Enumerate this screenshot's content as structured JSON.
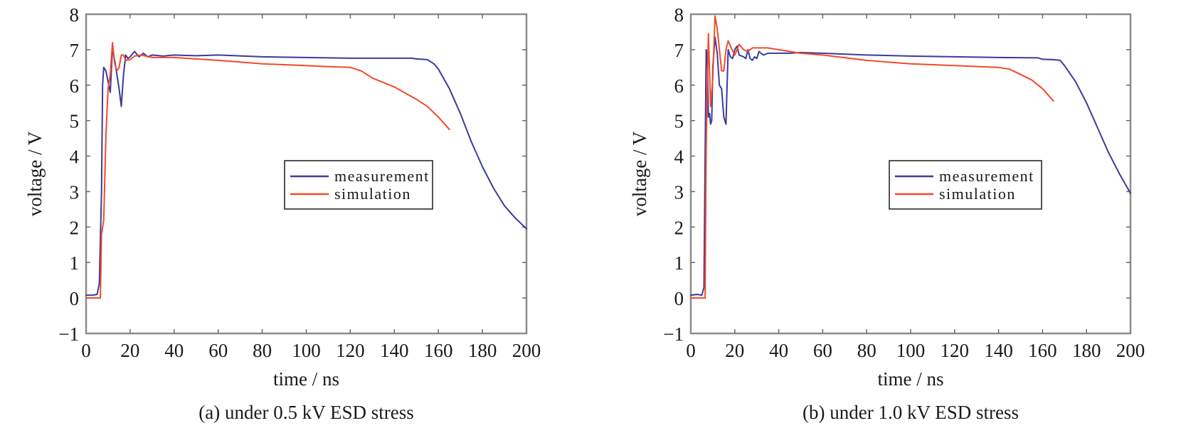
{
  "figure": {
    "panels": [
      "a",
      "b"
    ]
  },
  "chart_data": [
    {
      "id": "a",
      "type": "line",
      "caption": "(a) under 0.5 kV ESD stress",
      "title": "",
      "xlabel": "time / ns",
      "ylabel": "voltage / V",
      "xlim": [
        0,
        200
      ],
      "ylim": [
        -1,
        8
      ],
      "xticks": [
        0,
        20,
        40,
        60,
        80,
        100,
        120,
        140,
        160,
        180,
        200
      ],
      "yticks": [
        -1,
        0,
        1,
        2,
        3,
        4,
        5,
        6,
        7,
        8
      ],
      "xtick_labels": [
        "0",
        "20",
        "40",
        "60",
        "80",
        "100",
        "120",
        "140",
        "160",
        "180",
        "200"
      ],
      "ytick_labels": [
        "−1",
        "0",
        "1",
        "2",
        "3",
        "4",
        "5",
        "6",
        "7",
        "8"
      ],
      "grid": false,
      "legend": {
        "position": "center-right",
        "entries": [
          "measurement",
          "simulation"
        ]
      },
      "series": [
        {
          "name": "measurement",
          "color": "#3b3b9c",
          "x": [
            0,
            3,
            5,
            6,
            7,
            7.5,
            8,
            9,
            10,
            11,
            12,
            13,
            14,
            15,
            16,
            17,
            18,
            19,
            20,
            22,
            24,
            26,
            28,
            30,
            35,
            40,
            50,
            60,
            80,
            100,
            120,
            140,
            148,
            150,
            155,
            158,
            160,
            165,
            170,
            175,
            180,
            185,
            190,
            195,
            200
          ],
          "y": [
            0.08,
            0.08,
            0.1,
            0.4,
            3.0,
            6.0,
            6.5,
            6.4,
            6.1,
            5.8,
            7.05,
            6.7,
            6.3,
            5.9,
            5.4,
            6.3,
            6.85,
            6.75,
            6.8,
            6.95,
            6.8,
            6.9,
            6.8,
            6.85,
            6.82,
            6.85,
            6.83,
            6.85,
            6.8,
            6.78,
            6.76,
            6.76,
            6.76,
            6.74,
            6.72,
            6.6,
            6.45,
            5.9,
            5.2,
            4.4,
            3.7,
            3.1,
            2.6,
            2.25,
            1.95
          ]
        },
        {
          "name": "simulation",
          "color": "#f24a2a",
          "x": [
            0,
            5,
            6.5,
            7,
            8,
            9,
            10,
            11,
            12,
            13,
            14,
            15,
            16,
            17,
            18,
            20,
            22,
            25,
            30,
            40,
            60,
            80,
            100,
            110,
            120,
            125,
            130,
            140,
            150,
            155,
            160,
            165
          ],
          "y": [
            0.0,
            0.0,
            0.0,
            1.8,
            2.2,
            4.6,
            5.9,
            6.3,
            7.2,
            6.6,
            6.4,
            6.5,
            6.85,
            6.85,
            6.7,
            6.72,
            6.82,
            6.85,
            6.78,
            6.78,
            6.7,
            6.6,
            6.55,
            6.52,
            6.5,
            6.4,
            6.2,
            5.95,
            5.6,
            5.4,
            5.1,
            4.75
          ]
        }
      ]
    },
    {
      "id": "b",
      "type": "line",
      "caption": "(b) under 1.0 kV ESD stress",
      "title": "",
      "xlabel": "time / ns",
      "ylabel": "voltage / V",
      "xlim": [
        0,
        200
      ],
      "ylim": [
        -1,
        8
      ],
      "xticks": [
        0,
        20,
        40,
        60,
        80,
        100,
        120,
        140,
        160,
        180,
        200
      ],
      "yticks": [
        -1,
        0,
        1,
        2,
        3,
        4,
        5,
        6,
        7,
        8
      ],
      "xtick_labels": [
        "0",
        "20",
        "40",
        "60",
        "80",
        "100",
        "120",
        "140",
        "160",
        "180",
        "200"
      ],
      "ytick_labels": [
        "−1",
        "0",
        "1",
        "2",
        "3",
        "4",
        "5",
        "6",
        "7",
        "8"
      ],
      "grid": false,
      "legend": {
        "position": "center-right",
        "entries": [
          "measurement",
          "simulation"
        ]
      },
      "series": [
        {
          "name": "measurement",
          "color": "#3b3b9c",
          "x": [
            0,
            3,
            5,
            6,
            6.5,
            7,
            7.5,
            8,
            8.5,
            9,
            9.5,
            10,
            11,
            12,
            13,
            14,
            15,
            16,
            16.5,
            17,
            18,
            19,
            20,
            21,
            22,
            24,
            25,
            26,
            27,
            28,
            29,
            30,
            31,
            32,
            33,
            35,
            40,
            45,
            50,
            60,
            80,
            100,
            120,
            140,
            158,
            160,
            165,
            168,
            170,
            175,
            180,
            185,
            190,
            195,
            200
          ],
          "y": [
            0.08,
            0.1,
            0.08,
            0.3,
            4.0,
            7.0,
            6.8,
            5.1,
            5.2,
            4.9,
            5.0,
            6.5,
            7.35,
            6.9,
            6.0,
            5.9,
            5.1,
            4.9,
            6.0,
            7.0,
            6.8,
            6.75,
            7.0,
            7.1,
            6.85,
            6.8,
            6.75,
            7.0,
            6.75,
            6.7,
            6.8,
            6.75,
            6.95,
            6.9,
            6.85,
            6.9,
            6.9,
            6.9,
            6.92,
            6.9,
            6.85,
            6.82,
            6.8,
            6.78,
            6.77,
            6.73,
            6.72,
            6.7,
            6.55,
            6.1,
            5.5,
            4.8,
            4.1,
            3.5,
            2.95
          ]
        },
        {
          "name": "simulation",
          "color": "#f24a2a",
          "x": [
            0,
            5,
            6.5,
            7,
            8,
            9,
            10,
            11,
            12,
            13,
            14,
            15,
            16,
            17,
            18,
            20,
            22,
            24,
            26,
            28,
            30,
            35,
            40,
            50,
            60,
            80,
            100,
            120,
            140,
            145,
            150,
            155,
            160,
            165
          ],
          "y": [
            0.0,
            0.0,
            0.0,
            4.3,
            7.45,
            5.4,
            6.2,
            7.95,
            7.6,
            7.0,
            6.4,
            6.4,
            7.0,
            7.25,
            7.1,
            6.85,
            7.15,
            7.0,
            6.95,
            7.05,
            7.05,
            7.05,
            7.0,
            6.9,
            6.85,
            6.7,
            6.6,
            6.55,
            6.5,
            6.45,
            6.3,
            6.15,
            5.9,
            5.55
          ]
        }
      ]
    }
  ]
}
